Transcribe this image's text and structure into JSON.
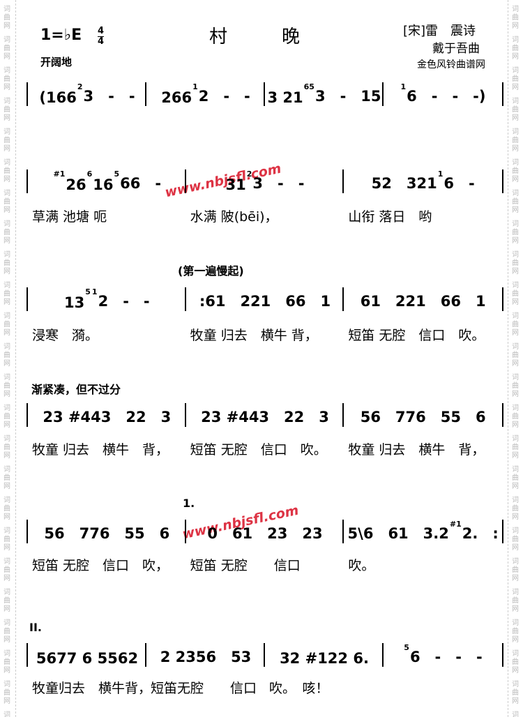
{
  "header": {
    "key": "1=♭E",
    "time_top": "4",
    "time_bottom": "4",
    "title": "村　　　晚",
    "poet": "[宋]雷　震诗",
    "composer": "戴于吾曲",
    "source": "金色风铃曲谱网",
    "tempo": "开阔地"
  },
  "watermark": "www.nbjsfl.com",
  "side_mark": "词曲网",
  "rows": [
    {
      "measures": [
        [
          "(166",
          {
            "grace": "2"
          },
          "3　-　-"
        ],
        [
          "266",
          {
            "grace": "1"
          },
          "2　-　-"
        ],
        [
          "3 21",
          {
            "grace": "65"
          },
          "3　-　15"
        ],
        [
          {
            "grace": "1"
          },
          "6　-　-　-)"
        ]
      ],
      "lyrics": []
    },
    {
      "measures": [
        [
          {
            "grace": "#1"
          },
          "26",
          {
            "grace": "6"
          },
          "16",
          {
            "grace": "5"
          },
          "66　-"
        ],
        [
          "31",
          {
            "grace": "2"
          },
          "3　-　-"
        ],
        [
          "52　321",
          {
            "grace": "1"
          },
          "6　-"
        ]
      ],
      "lyrics": [
        "草满 池塘 呃",
        "水满 陂(bēi)，",
        "山衔 落日　哟"
      ]
    },
    {
      "annotation": "(第一遍慢起)",
      "measures": [
        [
          "13",
          {
            "grace": "5"
          },
          {
            "grace": "1"
          },
          "2　-　-"
        ],
        [
          ":61　221　66　1"
        ],
        [
          "61　221　66　1"
        ]
      ],
      "lyrics": [
        "浸寒　漪。",
        "牧童 归去　横牛 背，",
        "短笛 无腔　信口　吹。"
      ]
    },
    {
      "annotation": "渐紧凑，但不过分",
      "measures": [
        [
          "23 #443　22　3"
        ],
        [
          "23 #443　22　3"
        ],
        [
          "56　776　55　6"
        ]
      ],
      "lyrics": [
        "牧童 归去　横牛　背，",
        "短笛 无腔　信口　吹。",
        "牧童 归去　横牛　背，"
      ]
    },
    {
      "annotation": "1.",
      "measures": [
        [
          "56　776　55　6"
        ],
        [
          "0　61　23　23"
        ],
        [
          "5\\6　61　3.2",
          {
            "grace": "#1"
          },
          "2.　:"
        ]
      ],
      "lyrics": [
        "短笛 无腔　信口　吹，",
        "短笛 无腔　　信口",
        "吹。"
      ]
    },
    {
      "annotation": "II.",
      "measures": [
        [
          "5677 6 5562"
        ],
        [
          "2 2356　53"
        ],
        [
          "32 #122 6."
        ],
        [
          {
            "grace": "5"
          },
          "6　-　-　-"
        ]
      ],
      "lyrics": [
        "牧童归去　横牛背，",
        "短笛无腔　　信口",
        "吹。　咳！"
      ]
    }
  ]
}
